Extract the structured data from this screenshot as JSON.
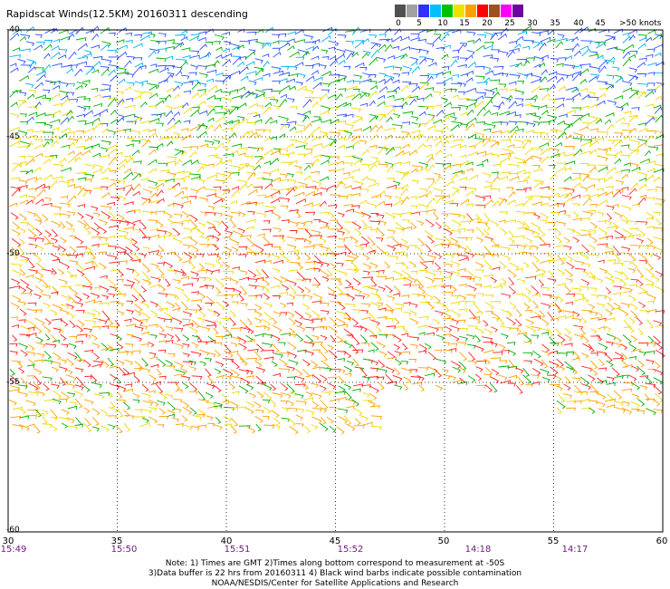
{
  "header": {
    "title": "Rapidscat Winds(12.5KM) 20160311 descending"
  },
  "legend": {
    "unit_label": ">50 knots",
    "labels": [
      "0",
      "5",
      "10",
      "15",
      "20",
      "25",
      "30",
      "35",
      "40",
      "45"
    ],
    "colors": [
      "#505050",
      "#a0a0a0",
      "#3030ff",
      "#00c0ff",
      "#00c000",
      "#f0e000",
      "#ffa000",
      "#ff0000",
      "#a05020",
      "#ff00ff",
      "#7000a0"
    ]
  },
  "axes": {
    "lat_labels": [
      "-40",
      "-45",
      "-50",
      "-55",
      "-60"
    ],
    "lon_labels": [
      "30",
      "35",
      "40",
      "45",
      "50",
      "55",
      "60"
    ],
    "times": [
      "15:49",
      "15:50",
      "15:51",
      "15:52",
      "14:18",
      "14:17"
    ]
  },
  "notes": {
    "line1": "Note: 1) Times are GMT 2)Times along bottom correspond to measurement at -50S",
    "line2": "3)Data buffer is 22 hrs from 20160311 4) Black wind barbs indicate possible contamination",
    "line3": "NOAA/NESDIS/Center for Satellite Applications and Research"
  }
}
